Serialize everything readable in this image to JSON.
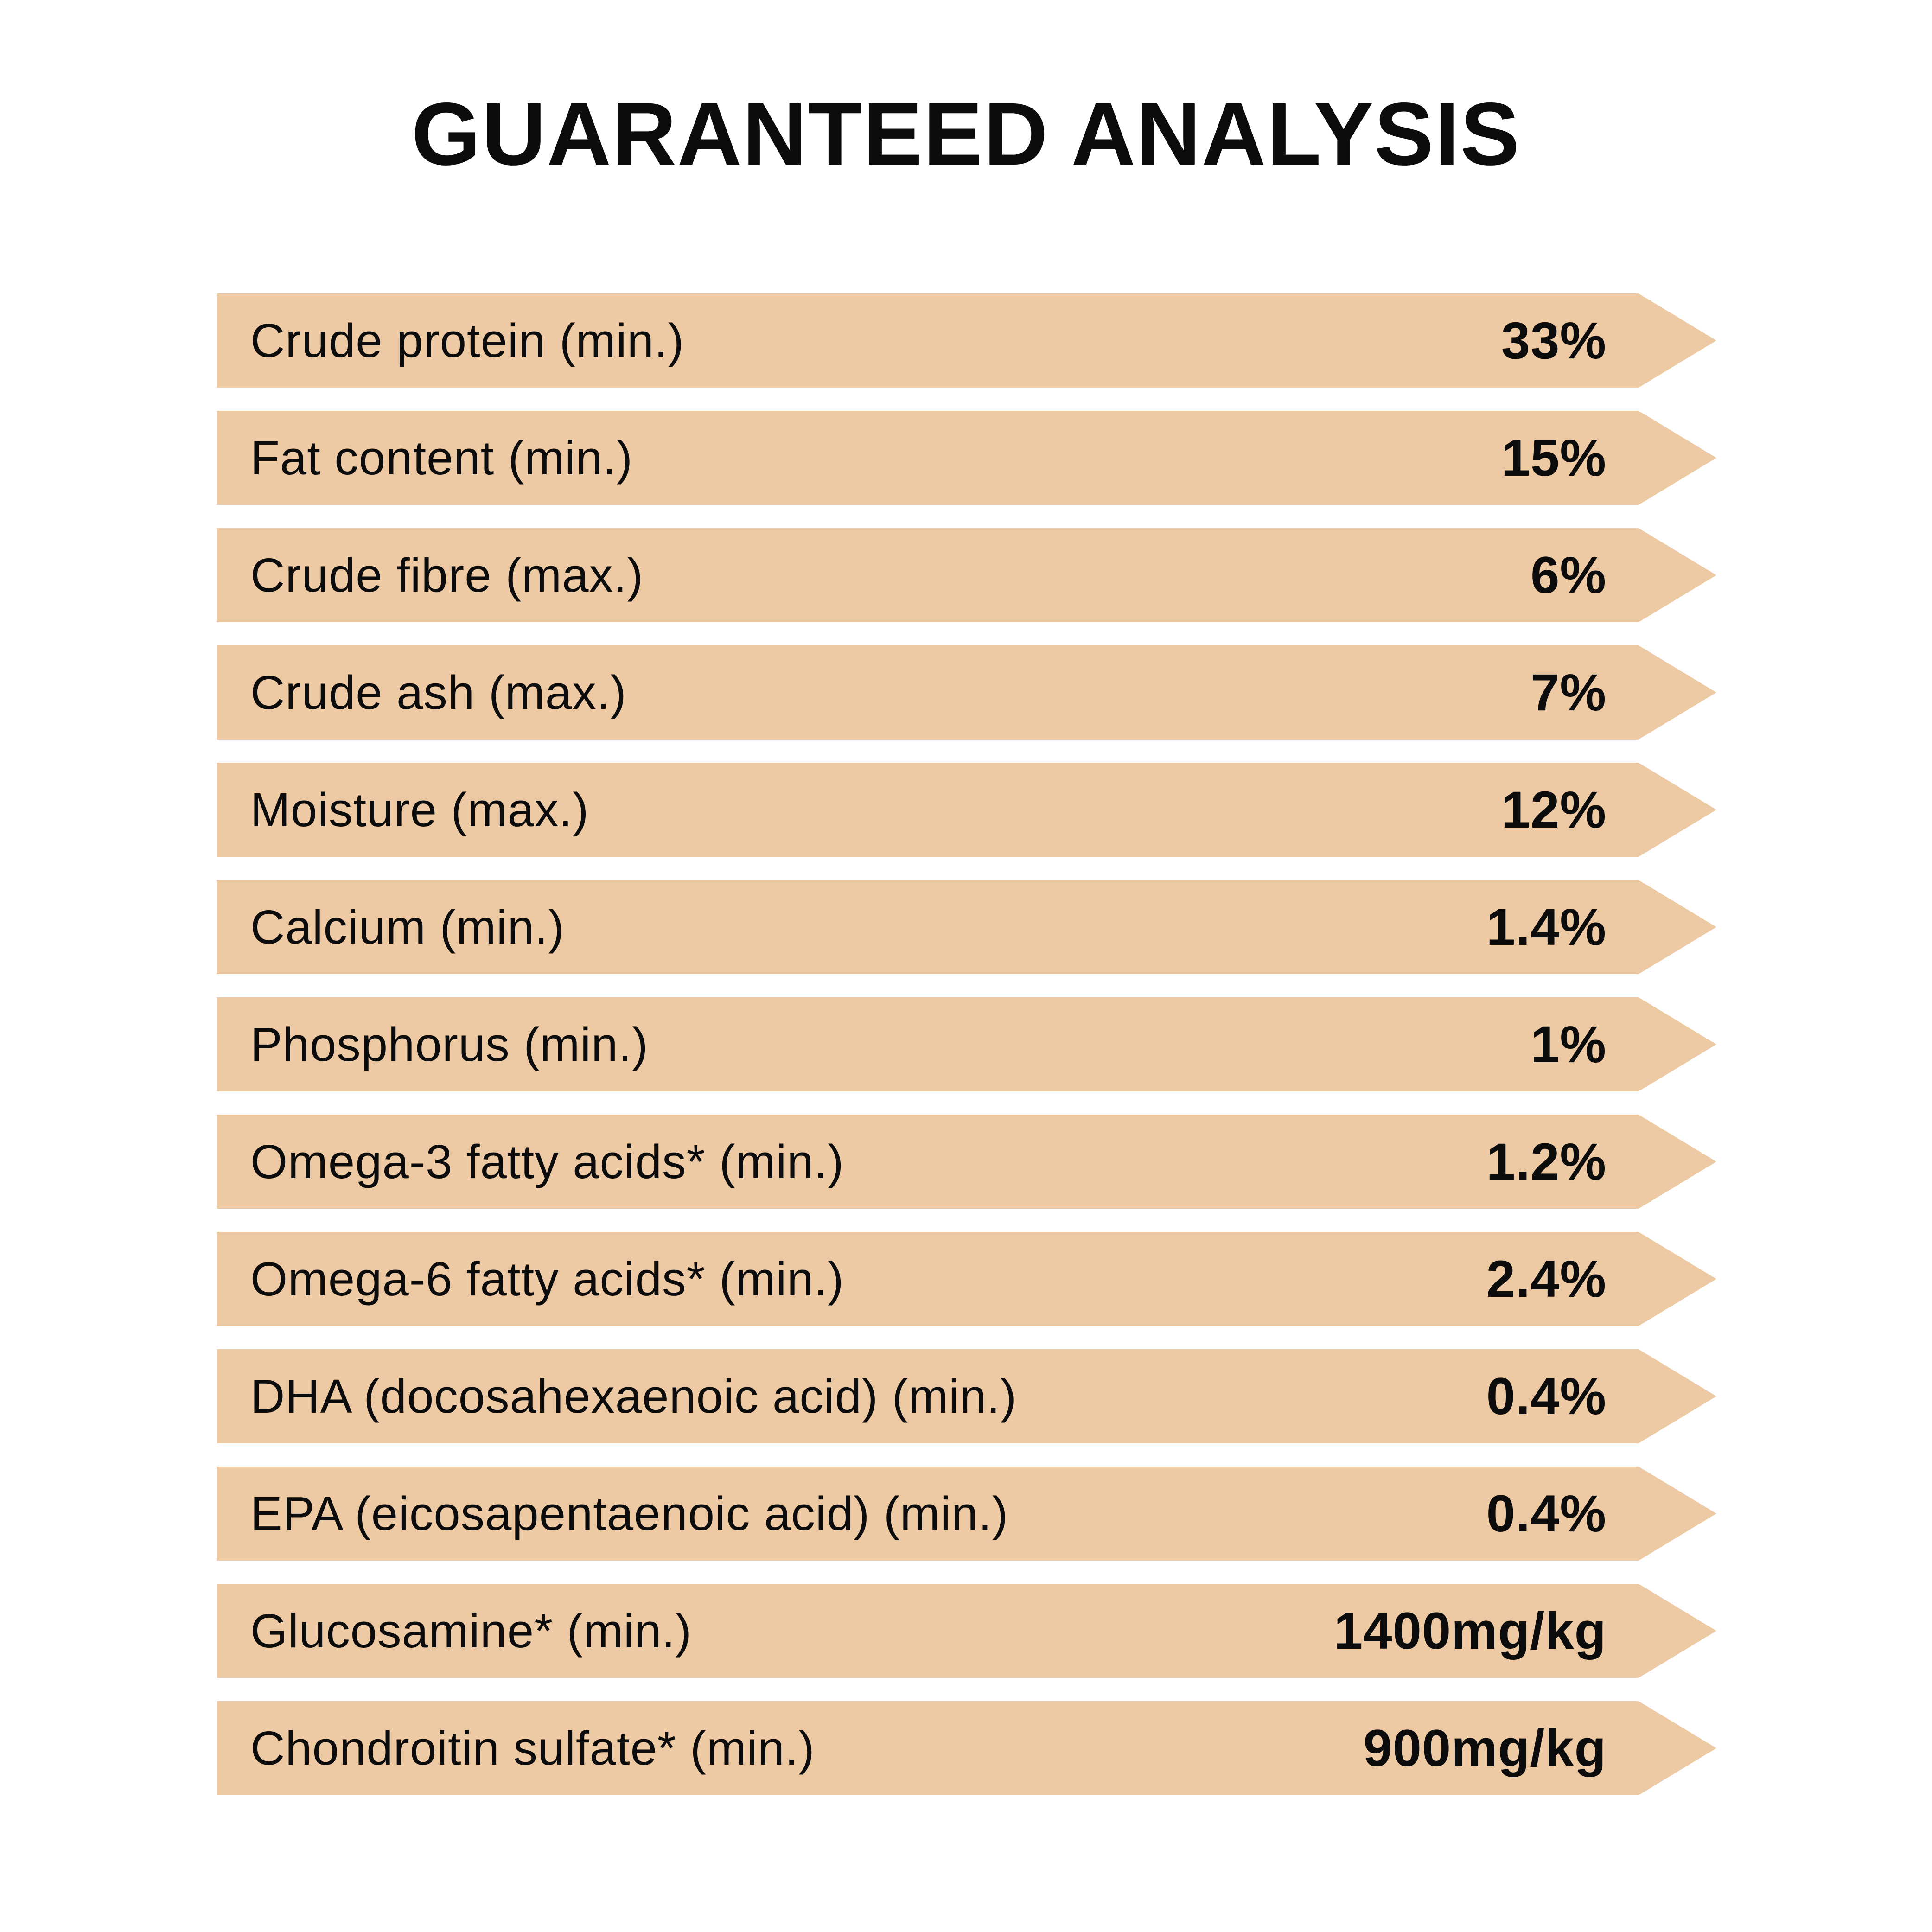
{
  "page": {
    "title": "GUARANTEED ANALYSIS"
  },
  "colors": {
    "banner": "#edc9a4",
    "text": "#0c0c0c",
    "background": "#ffffff"
  },
  "rows": [
    {
      "label": "Crude protein (min.)",
      "value": "33%"
    },
    {
      "label": "Fat content (min.)",
      "value": "15%"
    },
    {
      "label": "Crude fibre (max.)",
      "value": "6%"
    },
    {
      "label": "Crude ash (max.)",
      "value": "7%"
    },
    {
      "label": "Moisture (max.)",
      "value": "12%"
    },
    {
      "label": "Calcium (min.)",
      "value": "1.4%"
    },
    {
      "label": "Phosphorus (min.)",
      "value": "1%"
    },
    {
      "label": "Omega-3 fatty acids* (min.)",
      "value": "1.2%"
    },
    {
      "label": "Omega-6 fatty acids* (min.)",
      "value": "2.4%"
    },
    {
      "label": "DHA (docosahexaenoic acid) (min.)",
      "value": "0.4%"
    },
    {
      "label": "EPA (eicosapentaenoic acid) (min.)",
      "value": "0.4%"
    },
    {
      "label": "Glucosamine* (min.)",
      "value": "1400mg/kg"
    },
    {
      "label": "Chondroitin sulfate* (min.)",
      "value": "900mg/kg"
    }
  ]
}
